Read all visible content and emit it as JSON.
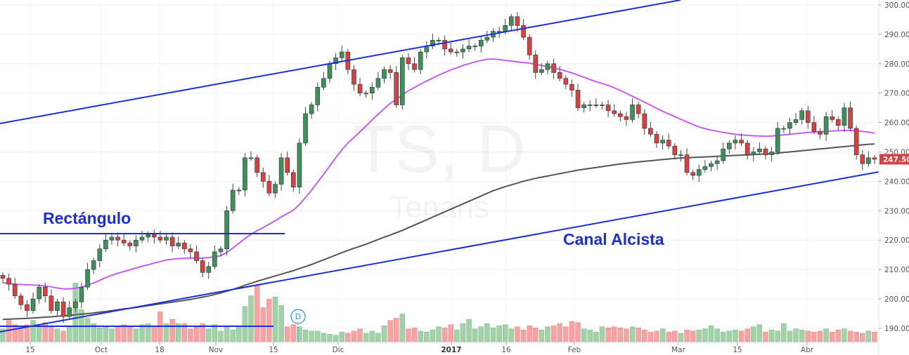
{
  "chart_data": {
    "type": "candlestick",
    "watermark": {
      "symbol": "TS, D",
      "name": "Tenaris"
    },
    "x_labels": [
      "15",
      "Oct",
      "18",
      "Nov",
      "15",
      "Dic",
      "2017",
      "16",
      "Feb",
      "Mar",
      "15",
      "Abr"
    ],
    "y_ticks": [
      190.0,
      200.0,
      210.0,
      220.0,
      230.0,
      240.0,
      250.0,
      260.0,
      270.0,
      280.0,
      290.0,
      300.0
    ],
    "ylim": [
      186,
      302
    ],
    "last_price": "247.50",
    "annotations": [
      "Rectángulo",
      "Canal Alcista"
    ],
    "event_marker": "D",
    "colors": {
      "up": "#3e8f5a",
      "down": "#d74141",
      "vol_up": "#a3d1a9",
      "vol_down": "#f5a3a3",
      "ma_short": "#c35ef0",
      "ma_long": "#555555",
      "trendline": "#1a2fd6",
      "badge": "#d74141"
    },
    "close": [
      207,
      205,
      201,
      198,
      196,
      200,
      204,
      201,
      196,
      199,
      194,
      197,
      199,
      204,
      210,
      213,
      217,
      220,
      221,
      220,
      219,
      218,
      220,
      221,
      222,
      221,
      220,
      221,
      218,
      219,
      217,
      216,
      213,
      209,
      211,
      216,
      217,
      230,
      237,
      237,
      248,
      248,
      243,
      240,
      236,
      239,
      248,
      243,
      238,
      253,
      263,
      266,
      272,
      275,
      280,
      282,
      284,
      278,
      273,
      270,
      270,
      272,
      275,
      278,
      277,
      266,
      282,
      280,
      278,
      284,
      286,
      288,
      288,
      285,
      284,
      284,
      285,
      286,
      286,
      288,
      289,
      291,
      291,
      293,
      296,
      293,
      289,
      283,
      277,
      278,
      280,
      277,
      275,
      273,
      271,
      265,
      266,
      266,
      266,
      266,
      264,
      263,
      262,
      261,
      266,
      263,
      258,
      256,
      253,
      254,
      252,
      249,
      249,
      243,
      242,
      244,
      245,
      246,
      247,
      251,
      253,
      254,
      253,
      249,
      250,
      251,
      249,
      250,
      258,
      258,
      260,
      261,
      264,
      260,
      257,
      256,
      262,
      261,
      259,
      265,
      258,
      249,
      246,
      248,
      247.5
    ],
    "volume": [
      12,
      20,
      16,
      15,
      16,
      20,
      14,
      18,
      14,
      12,
      10,
      14,
      55,
      30,
      22,
      17,
      13,
      14,
      12,
      14,
      16,
      14,
      12,
      16,
      17,
      15,
      28,
      17,
      21,
      17,
      17,
      12,
      14,
      17,
      12,
      16,
      10,
      15,
      11,
      14,
      33,
      43,
      53,
      32,
      40,
      42,
      34,
      14,
      16,
      14,
      11,
      10,
      10,
      8,
      7,
      6,
      9,
      8,
      10,
      12,
      8,
      10,
      8,
      15,
      20,
      22,
      26,
      12,
      13,
      10,
      9,
      11,
      14,
      13,
      16,
      11,
      17,
      21,
      12,
      14,
      17,
      13,
      15,
      16,
      12,
      14,
      11,
      15,
      13,
      11,
      14,
      15,
      17,
      14,
      19,
      18,
      12,
      11,
      9,
      14,
      13,
      14,
      13,
      12,
      14,
      13,
      11,
      9,
      10,
      12,
      9,
      10,
      8,
      11,
      10,
      11,
      12,
      15,
      12,
      9,
      10,
      11,
      10,
      12,
      14,
      16,
      9,
      11,
      10,
      17,
      10,
      12,
      11,
      10,
      9,
      10,
      12,
      9,
      11,
      12,
      10,
      9,
      8,
      10,
      9
    ],
    "ma_short": [
      205.5,
      205.2,
      205.0,
      204.9,
      204.8,
      204.7,
      204.6,
      204.4,
      204.1,
      203.7,
      203.4,
      203.4,
      203.6,
      204.0,
      204.7,
      205.4,
      206.3,
      207.2,
      208.0,
      208.7,
      209.3,
      209.9,
      210.5,
      211.1,
      211.6,
      212.2,
      212.7,
      213.2,
      213.5,
      213.7,
      213.8,
      213.9,
      213.8,
      213.9,
      214.0,
      214.3,
      214.7,
      215.8,
      217.3,
      218.9,
      220.5,
      222.0,
      223.2,
      224.3,
      225.4,
      226.6,
      227.9,
      229.0,
      230.2,
      232.1,
      234.5,
      237.0,
      239.7,
      242.4,
      245.2,
      248.0,
      250.7,
      253.0,
      254.9,
      256.9,
      258.8,
      260.9,
      262.8,
      264.7,
      266.5,
      267.8,
      269.4,
      270.8,
      271.9,
      273.1,
      274.1,
      275.1,
      276.1,
      277.0,
      277.9,
      278.6,
      279.4,
      280.0,
      280.6,
      281.1,
      281.5,
      281.6,
      281.4,
      281.1,
      280.9,
      280.6,
      280.4,
      280.2,
      279.8,
      279.4,
      279.0,
      278.6,
      278.1,
      277.5,
      276.9,
      276.1,
      275.4,
      274.6,
      273.9,
      273.3,
      272.6,
      271.8,
      270.9,
      269.9,
      268.9,
      267.9,
      266.9,
      265.9,
      264.8,
      263.8,
      262.9,
      262.0,
      261.1,
      260.2,
      259.3,
      258.5,
      257.9,
      257.4,
      257.0,
      256.6,
      256.3,
      256.0,
      255.8,
      255.6,
      255.5,
      255.4,
      255.3,
      255.4,
      255.6,
      255.8,
      256.0,
      256.2,
      256.4,
      256.6,
      256.7,
      256.8,
      257.0,
      257.1,
      257.2,
      257.3,
      257.3,
      257.2,
      257.0,
      256.7,
      256.4
    ],
    "ma_long": [
      193.0,
      193.1,
      193.2,
      193.3,
      193.4,
      193.5,
      193.6,
      193.8,
      193.9,
      194.1,
      194.2,
      194.4,
      194.6,
      194.8,
      195.0,
      195.2,
      195.5,
      195.7,
      196.0,
      196.3,
      196.6,
      196.8,
      197.1,
      197.4,
      197.7,
      198.0,
      198.3,
      198.6,
      198.9,
      199.2,
      199.5,
      199.8,
      200.2,
      200.6,
      201.0,
      201.5,
      202.0,
      202.6,
      203.2,
      203.9,
      204.6,
      205.3,
      206.0,
      206.6,
      207.2,
      207.8,
      208.4,
      209.0,
      209.6,
      210.3,
      211.0,
      211.7,
      212.5,
      213.3,
      214.1,
      214.9,
      215.7,
      216.5,
      217.2,
      217.9,
      218.6,
      219.4,
      220.2,
      221.0,
      221.7,
      222.5,
      223.3,
      224.2,
      225.1,
      226.0,
      226.9,
      227.8,
      228.7,
      229.6,
      230.5,
      231.4,
      232.3,
      233.2,
      234.1,
      235.0,
      235.9,
      236.8,
      237.5,
      238.2,
      238.8,
      239.4,
      240.0,
      240.5,
      241.0,
      241.4,
      241.8,
      242.2,
      242.6,
      243.0,
      243.4,
      243.8,
      244.1,
      244.4,
      244.7,
      245.0,
      245.3,
      245.6,
      245.9,
      246.1,
      246.4,
      246.6,
      246.8,
      247.0,
      247.2,
      247.4,
      247.6,
      247.8,
      247.9,
      248.0,
      248.1,
      248.2,
      248.3,
      248.4,
      248.5,
      248.6,
      248.7,
      248.8,
      248.9,
      249.0,
      249.1,
      249.2,
      249.3,
      249.4,
      249.6,
      249.8,
      250.0,
      250.2,
      250.4,
      250.6,
      250.8,
      251.0,
      251.2,
      251.4,
      251.6,
      251.8,
      252.0,
      252.2,
      252.4,
      252.6,
      252.7
    ]
  }
}
